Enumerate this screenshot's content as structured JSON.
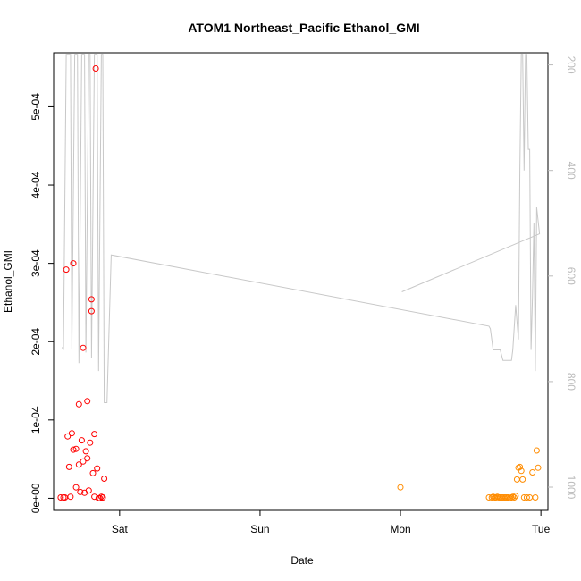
{
  "chart_data": {
    "type": "scatter",
    "title": "ATOM1 Northeast_Pacific Ethanol_GMI",
    "xlabel": "Date",
    "ylabel": "Ethanol_GMI",
    "x_ticks": [
      "Sat",
      "Sun",
      "Mon",
      "Tue"
    ],
    "xlim_days": [
      -0.47,
      3.05
    ],
    "ylim": [
      -1.55e-05,
      0.000569
    ],
    "y_ticks": [
      {
        "value": 0,
        "label": "0e+00"
      },
      {
        "value": 0.0001,
        "label": "1e-04"
      },
      {
        "value": 0.0002,
        "label": "2e-04"
      },
      {
        "value": 0.0003,
        "label": "3e-04"
      },
      {
        "value": 0.0004,
        "label": "4e-04"
      },
      {
        "value": 0.0005,
        "label": "5e-04"
      }
    ],
    "secondary_axis": {
      "ylim_reversed": [
        177,
        1044
      ],
      "ticks": [
        200,
        400,
        600,
        800,
        1000
      ],
      "color": "#bbbbbb"
    },
    "colors": {
      "series1": "#ff0000",
      "series2": "#ff8c00",
      "line": "#c8c8c8"
    },
    "series": [
      {
        "color": "#ff0000",
        "points": [
          [
            -0.42,
            1e-06
          ],
          [
            -0.4,
            1e-06
          ],
          [
            -0.39,
            1e-06
          ],
          [
            -0.37,
            7.9e-05
          ],
          [
            -0.38,
            0.000292
          ],
          [
            -0.36,
            4e-05
          ],
          [
            -0.35,
            2e-06
          ],
          [
            -0.34,
            8.3e-05
          ],
          [
            -0.33,
            0.0003
          ],
          [
            -0.33,
            6.2e-05
          ],
          [
            -0.31,
            1.4e-05
          ],
          [
            -0.31,
            6.3e-05
          ],
          [
            -0.29,
            0.00012
          ],
          [
            -0.29,
            4.3e-05
          ],
          [
            -0.28,
            8e-06
          ],
          [
            -0.27,
            7.4e-05
          ],
          [
            -0.26,
            4.7e-05
          ],
          [
            -0.26,
            0.000192
          ],
          [
            -0.25,
            7e-06
          ],
          [
            -0.24,
            6e-05
          ],
          [
            -0.23,
            0.000124
          ],
          [
            -0.23,
            5.1e-05
          ],
          [
            -0.22,
            1e-05
          ],
          [
            -0.21,
            7.1e-05
          ],
          [
            -0.2,
            0.000239
          ],
          [
            -0.2,
            0.000254
          ],
          [
            -0.19,
            3.2e-05
          ],
          [
            -0.18,
            2e-06
          ],
          [
            -0.18,
            8.2e-05
          ],
          [
            -0.17,
            0.000549
          ],
          [
            -0.16,
            3.8e-05
          ],
          [
            -0.15,
            0.0
          ],
          [
            -0.14,
            0.0
          ],
          [
            -0.13,
            2e-06
          ],
          [
            -0.12,
            1e-06
          ],
          [
            -0.11,
            2.5e-05
          ]
        ]
      },
      {
        "color": "#ff8c00",
        "points": [
          [
            2.0,
            1.4e-05
          ],
          [
            2.63,
            1e-06
          ],
          [
            2.65,
            1e-06
          ],
          [
            2.66,
            2e-06
          ],
          [
            2.67,
            1e-06
          ],
          [
            2.68,
            1e-06
          ],
          [
            2.69,
            2e-06
          ],
          [
            2.7,
            1e-06
          ],
          [
            2.71,
            1e-06
          ],
          [
            2.72,
            1e-06
          ],
          [
            2.73,
            1e-06
          ],
          [
            2.74,
            1e-06
          ],
          [
            2.75,
            1e-06
          ],
          [
            2.76,
            1e-06
          ],
          [
            2.77,
            1e-06
          ],
          [
            2.78,
            0.0
          ],
          [
            2.79,
            1e-06
          ],
          [
            2.8,
            2e-06
          ],
          [
            2.81,
            1e-06
          ],
          [
            2.82,
            3e-06
          ],
          [
            2.83,
            2.4e-05
          ],
          [
            2.84,
            3.9e-05
          ],
          [
            2.85,
            4e-05
          ],
          [
            2.86,
            3.5e-05
          ],
          [
            2.87,
            2.4e-05
          ],
          [
            2.88,
            1e-06
          ],
          [
            2.9,
            1e-06
          ],
          [
            2.92,
            1e-06
          ],
          [
            2.94,
            3.3e-05
          ],
          [
            2.96,
            1e-06
          ],
          [
            2.97,
            6.1e-05
          ],
          [
            2.98,
            3.9e-05
          ]
        ]
      }
    ],
    "line_series": {
      "axis": "secondary",
      "points": [
        [
          -0.41,
          735
        ],
        [
          -0.4,
          740
        ],
        [
          -0.38,
          180
        ],
        [
          -0.35,
          180
        ],
        [
          -0.34,
          738
        ],
        [
          -0.32,
          180
        ],
        [
          -0.3,
          180
        ],
        [
          -0.29,
          765
        ],
        [
          -0.27,
          180
        ],
        [
          -0.25,
          180
        ],
        [
          -0.24,
          745
        ],
        [
          -0.22,
          180
        ],
        [
          -0.21,
          180
        ],
        [
          -0.2,
          755
        ],
        [
          -0.18,
          180
        ],
        [
          -0.16,
          180
        ],
        [
          -0.15,
          780
        ],
        [
          -0.13,
          180
        ],
        [
          -0.12,
          180
        ],
        [
          -0.11,
          840
        ],
        [
          -0.09,
          840
        ],
        [
          -0.06,
          560
        ],
        [
          2.63,
          695
        ],
        [
          2.64,
          700
        ],
        [
          2.66,
          740
        ],
        [
          2.7,
          740
        ],
        [
          2.71,
          740
        ],
        [
          2.73,
          760
        ],
        [
          2.76,
          760
        ],
        [
          2.79,
          760
        ],
        [
          2.8,
          740
        ],
        [
          2.82,
          655
        ],
        [
          2.84,
          720
        ],
        [
          2.85,
          400
        ],
        [
          2.86,
          180
        ],
        [
          2.87,
          180
        ],
        [
          2.88,
          400
        ],
        [
          2.89,
          180
        ],
        [
          2.9,
          180
        ],
        [
          2.91,
          360
        ],
        [
          2.92,
          360
        ],
        [
          2.93,
          740
        ],
        [
          2.94,
          640
        ],
        [
          2.95,
          500
        ],
        [
          2.96,
          780
        ],
        [
          2.97,
          470
        ],
        [
          2.99,
          520
        ],
        [
          2.01,
          630
        ]
      ]
    }
  }
}
